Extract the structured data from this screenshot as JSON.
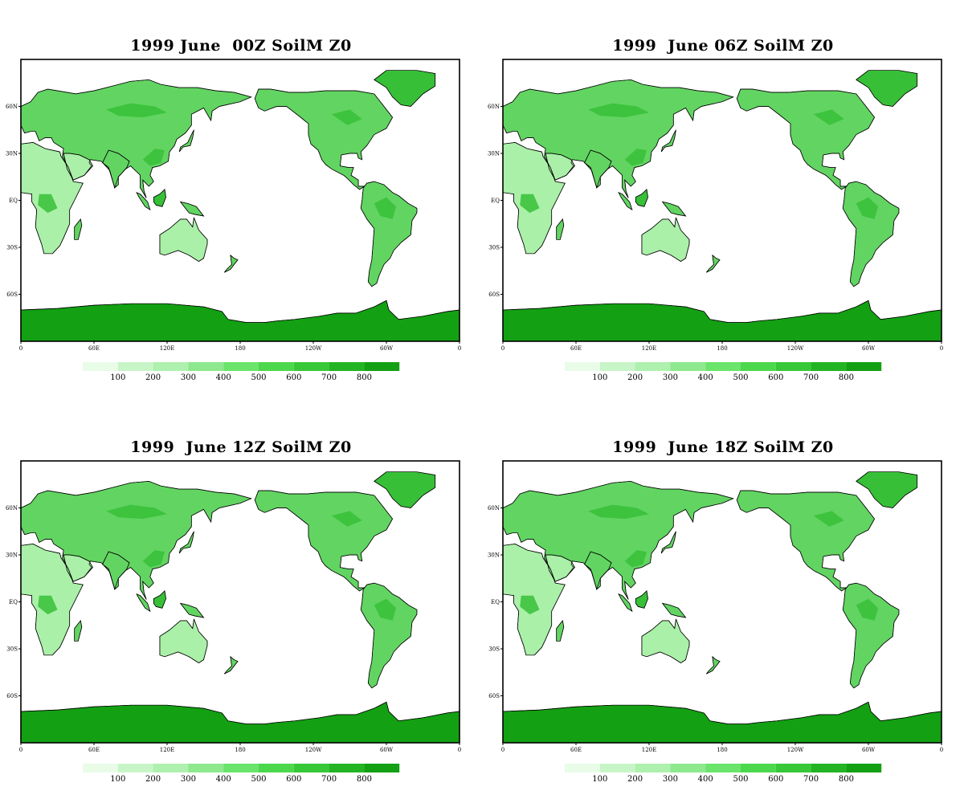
{
  "panels": [
    {
      "title": "1999 June  00Z SoilM Z0"
    },
    {
      "title": "1999  June 06Z SoilM Z0"
    },
    {
      "title": "1999  June 12Z SoilM Z0"
    },
    {
      "title": "1999  June 18Z SoilM Z0"
    }
  ],
  "lon_ticks": [
    "0",
    "60E",
    "120E",
    "180",
    "120W",
    "60W",
    "0"
  ],
  "lat_ticks": [
    "60N",
    "30N",
    "EQ",
    "30S",
    "60S"
  ],
  "colorbar": {
    "labels": [
      "100",
      "200",
      "300",
      "400",
      "500",
      "600",
      "700",
      "800"
    ],
    "colors": [
      "#e8fce8",
      "#c8f5c8",
      "#aef0ae",
      "#8ee88e",
      "#6ae46a",
      "#4cd84c",
      "#37c837",
      "#23b423",
      "#13a013"
    ]
  },
  "colors": {
    "land_typical": "#62d462",
    "land_wet": "#37c037",
    "land_dry": "#aaf0a8",
    "antarctica": "#13a013",
    "ocean": "#ffffff",
    "frame": "#000000"
  }
}
